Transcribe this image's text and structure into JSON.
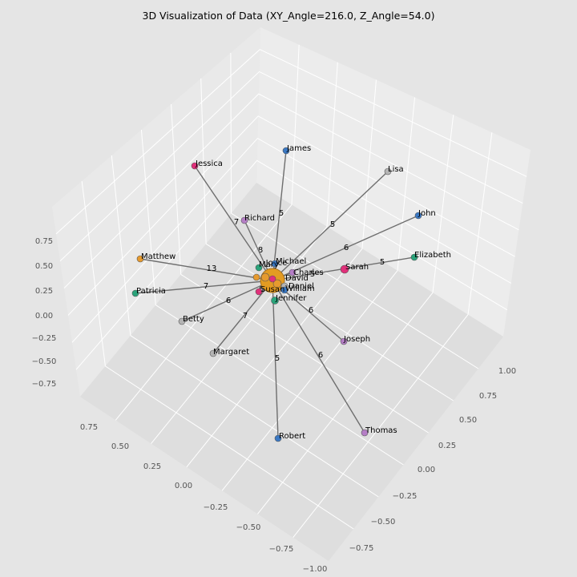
{
  "chart_data": {
    "type": "network-3d",
    "title": "3D Visualization of Data (XY_Angle=216.0, Z_Angle=54.0)",
    "z_ticks": [
      "0.75",
      "0.50",
      "0.25",
      "0.00",
      "−0.25",
      "−0.50",
      "−0.75"
    ],
    "y_ticks": [
      "0.75",
      "0.50",
      "0.25",
      "0.00",
      "−0.25",
      "−0.50",
      "−0.75",
      "−1.00"
    ],
    "x_ticks": [
      "1.00",
      "0.75",
      "0.50",
      "0.25",
      "0.00",
      "−0.25",
      "−0.50",
      "−0.75"
    ],
    "nodes": [
      {
        "name": "James",
        "color": "#3a78c3"
      },
      {
        "name": "Lisa",
        "color": "#b4b4b4"
      },
      {
        "name": "John",
        "color": "#3a78c3"
      },
      {
        "name": "Elizabeth",
        "color": "#2aa37a"
      },
      {
        "name": "Sarah",
        "color": "#e0307a"
      },
      {
        "name": "Jessica",
        "color": "#e0307a"
      },
      {
        "name": "Richard",
        "color": "#b57ec6"
      },
      {
        "name": "Matthew",
        "color": "#e69a2e"
      },
      {
        "name": "Patricia",
        "color": "#2aa37a"
      },
      {
        "name": "Betty",
        "color": "#b4b4b4"
      },
      {
        "name": "Margaret",
        "color": "#b4b4b4"
      },
      {
        "name": "Joseph",
        "color": "#b57ec6"
      },
      {
        "name": "Thomas",
        "color": "#b57ec6"
      },
      {
        "name": "Robert",
        "color": "#3a78c3"
      },
      {
        "name": "Michael",
        "color": "#3a78c3"
      },
      {
        "name": "Mary",
        "color": "#2aa37a"
      },
      {
        "name": "Charles",
        "color": "#b57ec6"
      },
      {
        "name": "David",
        "color": "#e0307a"
      },
      {
        "name": "Daniel",
        "color": "#b4b4b4"
      },
      {
        "name": "William",
        "color": "#3a78c3"
      },
      {
        "name": "Jennifer",
        "color": "#2aa37a"
      },
      {
        "name": "Susan",
        "color": "#e0307a"
      }
    ],
    "center_label": "Joyce",
    "edges": [
      {
        "target": "James",
        "weight": "5"
      },
      {
        "target": "Lisa",
        "weight": "5"
      },
      {
        "target": "John",
        "weight": "6"
      },
      {
        "target": "Elizabeth",
        "weight": "5"
      },
      {
        "target": "Jessica",
        "weight": "8"
      },
      {
        "target": "Richard",
        "weight": "7"
      },
      {
        "target": "Matthew",
        "weight": "13"
      },
      {
        "target": "Patricia",
        "weight": "7"
      },
      {
        "target": "Betty",
        "weight": "6"
      },
      {
        "target": "Margaret",
        "weight": "7"
      },
      {
        "target": "Joseph",
        "weight": "6"
      },
      {
        "target": "Thomas",
        "weight": "6"
      },
      {
        "target": "Robert",
        "weight": "5"
      },
      {
        "target": "Charles",
        "weight": "5"
      }
    ],
    "extra_edge_labels": [
      "6"
    ]
  }
}
